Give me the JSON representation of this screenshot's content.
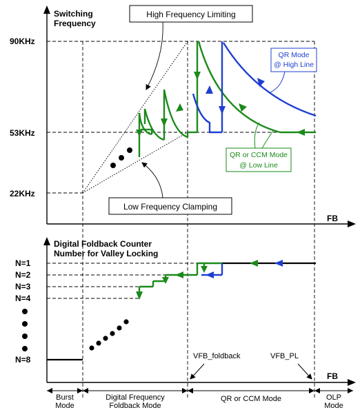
{
  "top_chart": {
    "y_axis_title": "Switching Frequency",
    "x_axis_label": "FB",
    "freq_labels": {
      "f90": "90KHz",
      "f53": "53KHz",
      "f22": "22KHz"
    },
    "callouts": {
      "high_limiting": "High Frequency Limiting",
      "low_clamping": "Low Frequency Clamping",
      "qr_high_line": [
        "QR Mode",
        "@ High Line"
      ],
      "qr_ccm_low_line": [
        "QR or CCM Mode",
        "@ Low Line"
      ]
    }
  },
  "bottom_chart": {
    "y_axis_title": [
      "Digital Foldback Counter",
      "Number for Valley Locking"
    ],
    "x_axis_label": "FB",
    "n_labels": {
      "n1": "N=1",
      "n2": "N=2",
      "n3": "N=3",
      "n4": "N=4",
      "n8": "N=8"
    },
    "markers": {
      "vfb_foldback": "VFB_foldback",
      "vfb_pl": "VFB_PL"
    }
  },
  "modes": {
    "burst": [
      "Burst",
      "Mode"
    ],
    "digital": [
      "Digital Frequency",
      "Foldback Mode"
    ],
    "qr_ccm": "QR or CCM Mode",
    "olp": [
      "OLP",
      "Mode"
    ]
  },
  "colors": {
    "green": "#1a8a1a",
    "blue": "#1f3fd0"
  }
}
